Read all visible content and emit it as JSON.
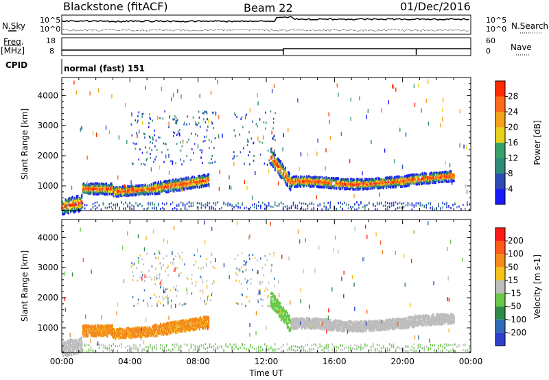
{
  "header": {
    "radar": "Blackstone (fitACF)",
    "beam": "Beam 22",
    "date": "01/Dec/2016"
  },
  "summary": {
    "nsky_label": "N.Sky",
    "nsearch_label": "N.Search",
    "freq_label": "Freq.",
    "freq_unit": "[MHz]",
    "nave_label": "Nave",
    "cpid_label": "CPID",
    "cpid_text": "normal (fast) 151",
    "noise_ticks": [
      "10^5",
      "10^0"
    ],
    "freq_ticks": [
      "18",
      "8"
    ],
    "nave_ticks": [
      "60",
      "0"
    ]
  },
  "chart_data": [
    {
      "type": "heatmap",
      "title": "",
      "xlabel": "Time UT",
      "ylabel": "Slant Range [km]",
      "x_ticks": [
        "00:00",
        "04:00",
        "08:00",
        "12:00",
        "16:00",
        "20:00",
        "00:00"
      ],
      "xlim_hours": [
        0,
        24
      ],
      "ylim": [
        180,
        4600
      ],
      "y_ticks": [
        1000,
        2000,
        3000,
        4000
      ],
      "colorbar": {
        "label": "Power [dB]",
        "ticks": [
          "4",
          "8",
          "12",
          "16",
          "20",
          "24",
          "28"
        ],
        "bands": [
          "#1a1aff",
          "#2f4cb5",
          "#2f8a7a",
          "#3aa06a",
          "#e8d21a",
          "#f4a11a",
          "#ff6a1a",
          "#ff2a00"
        ]
      }
    },
    {
      "type": "heatmap",
      "title": "",
      "xlabel": "Time UT",
      "ylabel": "Slant Range [km]",
      "x_ticks": [
        "00:00",
        "04:00",
        "08:00",
        "12:00",
        "16:00",
        "20:00",
        "00:00"
      ],
      "xlim_hours": [
        0,
        24
      ],
      "ylim": [
        180,
        4600
      ],
      "y_ticks": [
        1000,
        2000,
        3000,
        4000
      ],
      "colorbar": {
        "label": "Velocity [m s-1]",
        "ticks": [
          "200",
          "100",
          "50",
          "15",
          "-15",
          "-50",
          "-100",
          "-200"
        ],
        "bands": [
          "#2f3ec8",
          "#2f6ab8",
          "#2f8a4a",
          "#6ac84a",
          "#bdbdbd",
          "#f4c21a",
          "#f48a1a",
          "#ff5a1a",
          "#ff1a1a"
        ]
      }
    }
  ]
}
